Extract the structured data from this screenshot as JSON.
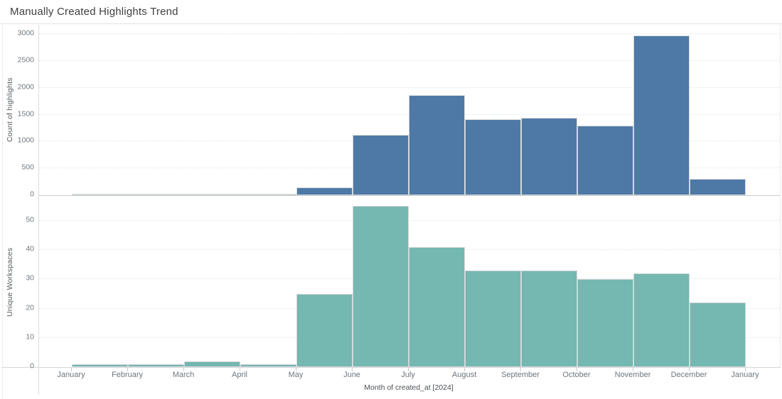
{
  "title": "Manually Created Highlights Trend",
  "x_axis": {
    "title": "Month of created_at [2024]",
    "tick_labels": [
      "January",
      "February",
      "March",
      "April",
      "May",
      "June",
      "July",
      "August",
      "September",
      "October",
      "November",
      "December",
      "January"
    ]
  },
  "chart_data": [
    {
      "type": "bar",
      "pane": "top",
      "ylabel": "Count of highlights",
      "categories": [
        "January",
        "February",
        "March",
        "April",
        "May",
        "June",
        "July",
        "August",
        "September",
        "October",
        "November",
        "December"
      ],
      "values": [
        2,
        8,
        30,
        6,
        150,
        1120,
        1870,
        1410,
        1440,
        1300,
        2970,
        310
      ],
      "ylim": [
        0,
        3170
      ],
      "yticks": [
        0,
        500,
        1000,
        1500,
        2000,
        2500,
        3000
      ],
      "bar_color": "#4e79a7",
      "grid": "dotted-horizontal",
      "legend": "none"
    },
    {
      "type": "bar",
      "pane": "bottom",
      "ylabel": "Unique Workspaces",
      "categories": [
        "January",
        "February",
        "March",
        "April",
        "May",
        "June",
        "July",
        "August",
        "September",
        "October",
        "November",
        "December"
      ],
      "values": [
        1,
        1,
        2,
        1,
        25,
        55,
        41,
        33,
        33,
        30,
        32,
        22
      ],
      "ylim": [
        0,
        58
      ],
      "yticks": [
        0,
        10,
        20,
        30,
        40,
        50
      ],
      "bar_color": "#75b7b1",
      "grid": "dotted-horizontal",
      "legend": "none"
    }
  ]
}
